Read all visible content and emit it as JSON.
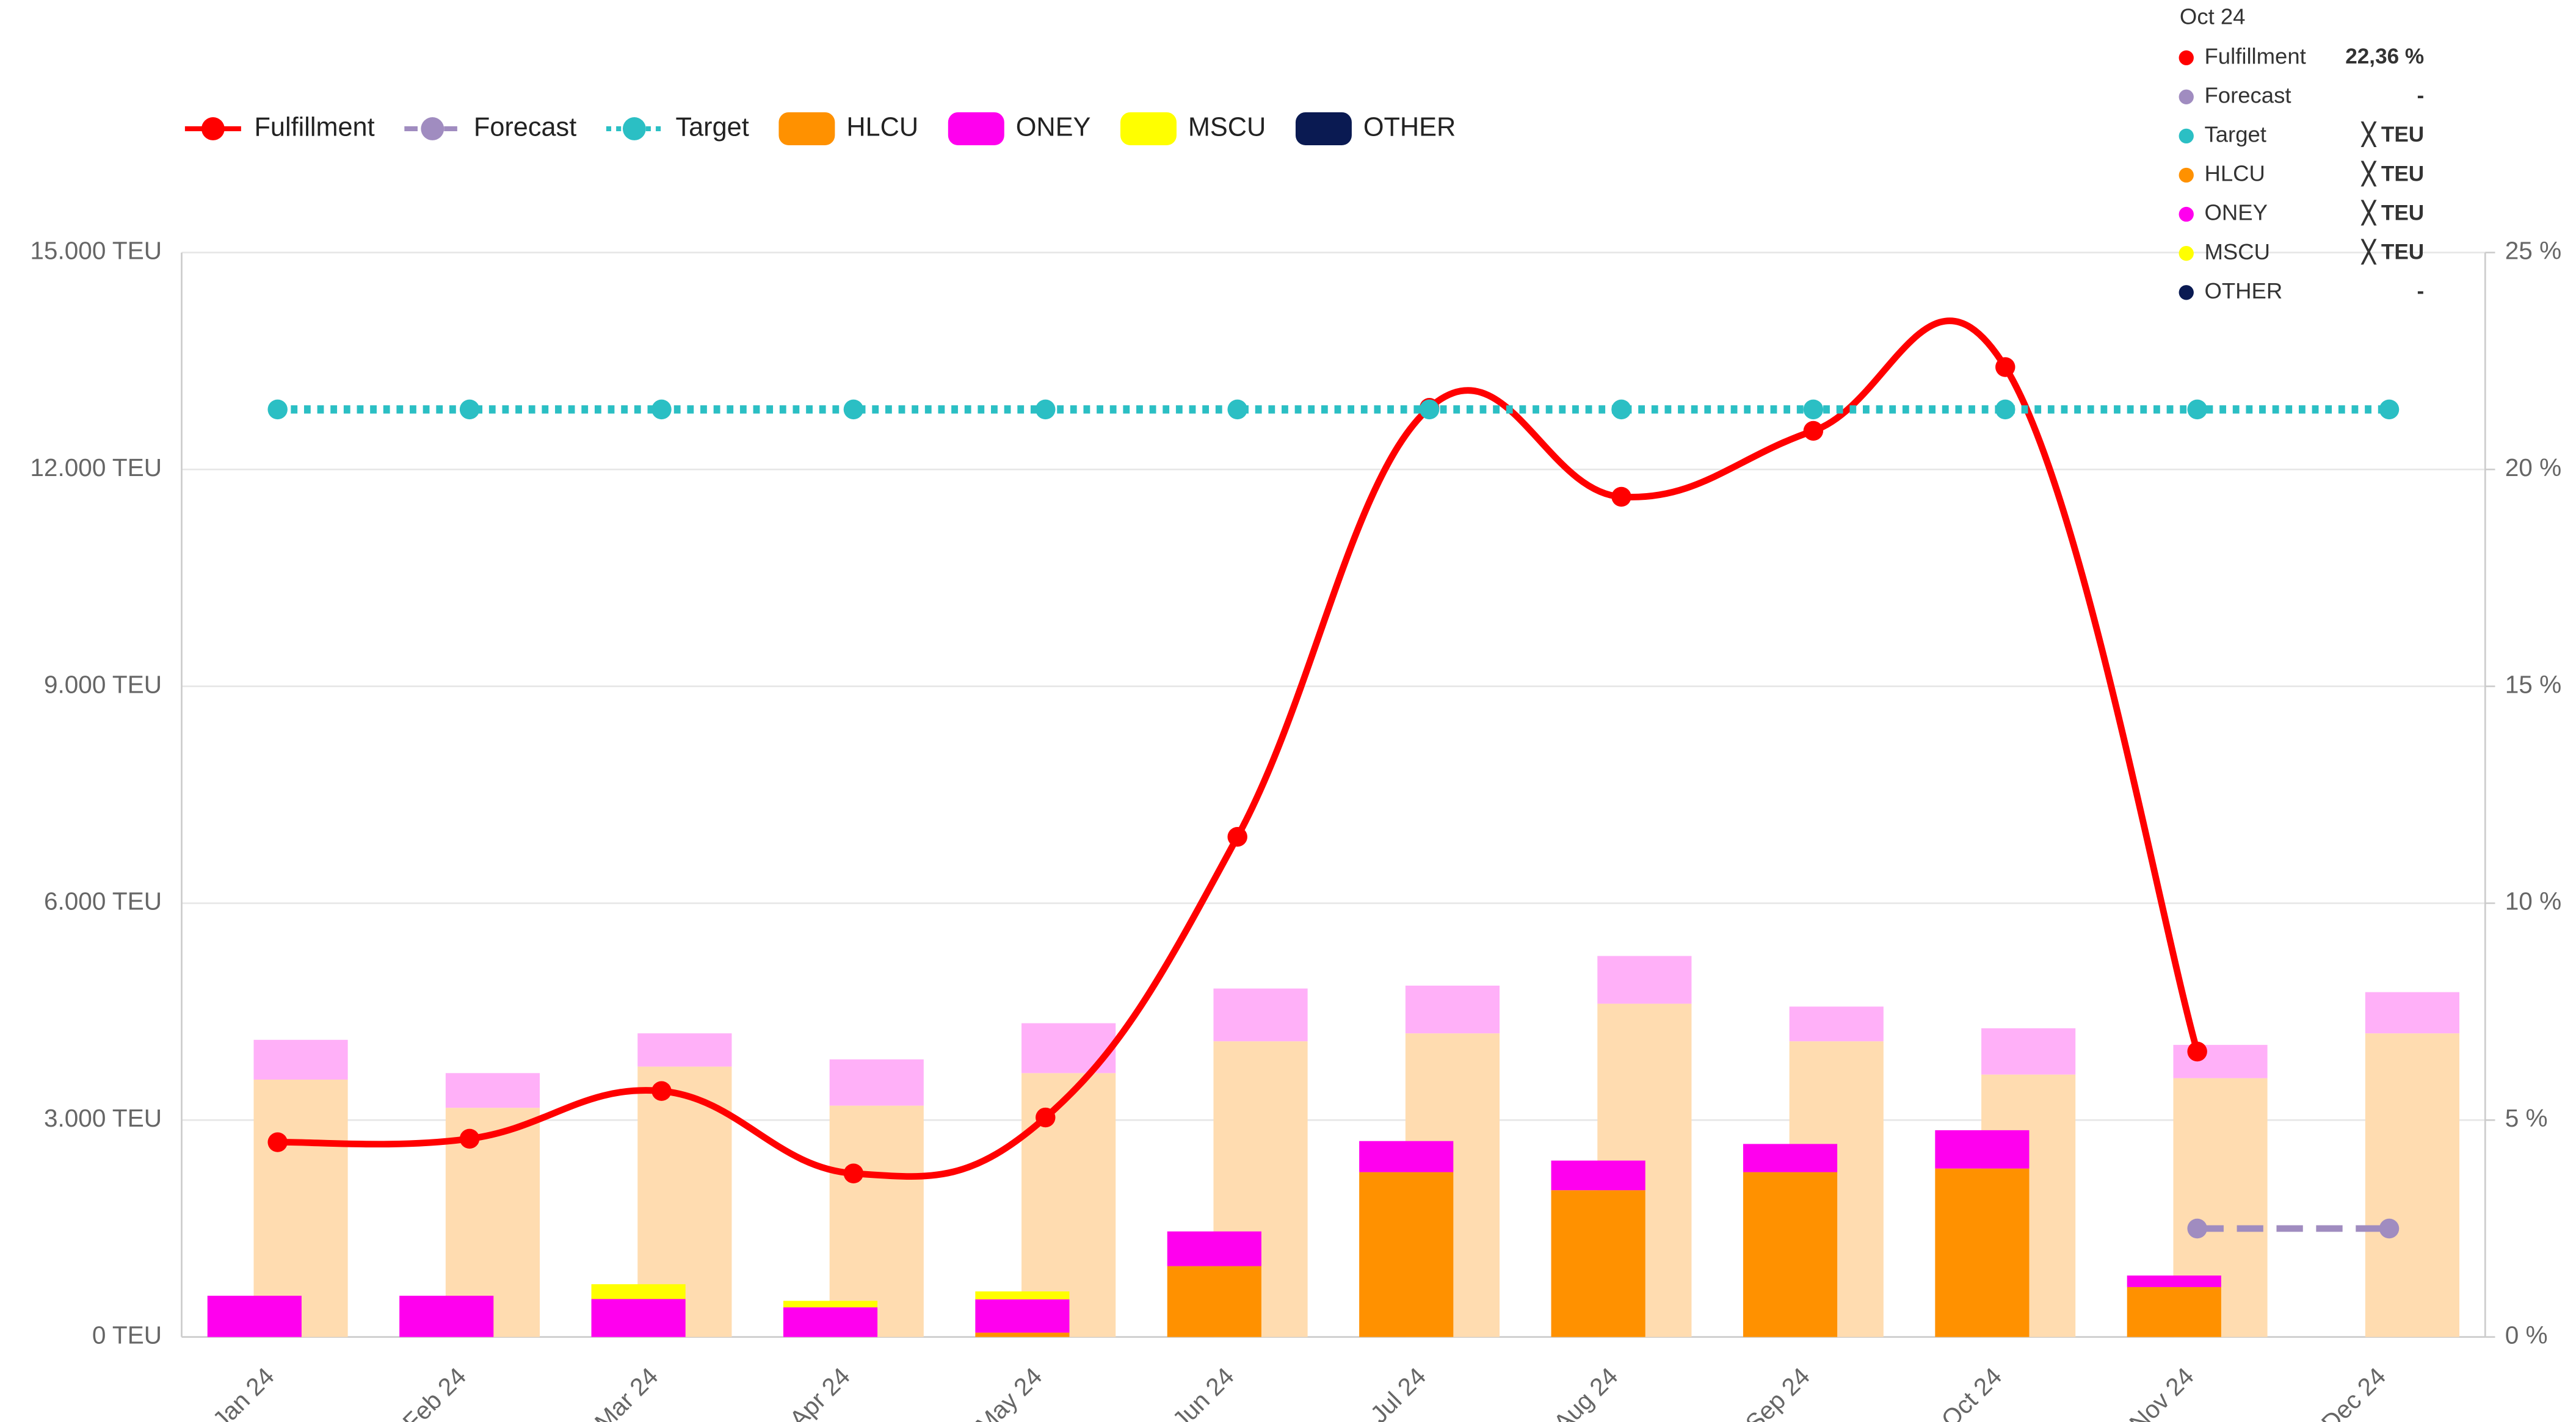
{
  "chart_data": {
    "type": "combo",
    "categories": [
      "Jan 24",
      "Feb 24",
      "Mar 24",
      "Apr 24",
      "May 24",
      "Jun 24",
      "Jul 24",
      "Aug 24",
      "Sep 24",
      "Oct 24",
      "Nov 24",
      "Dec 24"
    ],
    "series": [
      {
        "name": "Fulfillment",
        "kind": "line",
        "axis": "y2",
        "color": "#ff0000",
        "smooth": true,
        "values": [
          4.49,
          4.57,
          5.67,
          3.77,
          5.06,
          11.53,
          21.42,
          19.37,
          20.89,
          22.36,
          6.58,
          null
        ]
      },
      {
        "name": "Forecast",
        "kind": "line",
        "axis": "y2",
        "color": "#a08cc0",
        "dash": "dashed",
        "values": [
          null,
          null,
          null,
          null,
          null,
          null,
          null,
          null,
          null,
          null,
          2.5,
          2.5
        ]
      },
      {
        "name": "Target",
        "kind": "line",
        "axis": "y",
        "color": "#2bbfc4",
        "dash": "dotted",
        "values": [
          12830,
          12830,
          12830,
          12830,
          12830,
          12830,
          12830,
          12830,
          12830,
          12830,
          12830,
          12830
        ]
      },
      {
        "name": "HLCU",
        "kind": "bar",
        "axis": "y",
        "color": "#ff9100",
        "values": [
          0,
          0,
          0,
          0,
          60,
          980,
          2280,
          2030,
          2280,
          2330,
          690,
          0
        ]
      },
      {
        "name": "ONEY",
        "kind": "bar",
        "axis": "y",
        "color": "#ff00ee",
        "values": [
          570,
          570,
          525,
          410,
          460,
          480,
          430,
          410,
          390,
          530,
          160,
          0
        ]
      },
      {
        "name": "MSCU",
        "kind": "bar",
        "axis": "y",
        "color": "#ffff00",
        "values": [
          0,
          0,
          205,
          90,
          110,
          0,
          0,
          0,
          0,
          0,
          0,
          0
        ]
      },
      {
        "name": "OTHER",
        "kind": "bar",
        "axis": "y",
        "color": "#0a1a52",
        "values": [
          0,
          0,
          0,
          0,
          0,
          0,
          0,
          0,
          0,
          0,
          0,
          0
        ]
      }
    ],
    "reference_bars": [
      {
        "color": "#ffdcb0",
        "values": [
          3560,
          3170,
          3740,
          3200,
          3650,
          4090,
          4200,
          4610,
          4090,
          3630,
          3580,
          4200
        ]
      },
      {
        "color": "#ffb0f8",
        "values": [
          550,
          480,
          460,
          640,
          690,
          730,
          660,
          660,
          480,
          640,
          460,
          570
        ]
      }
    ],
    "ylim": [
      0,
      15000
    ],
    "yticks": [
      {
        "value": 0,
        "label": "0 TEU"
      },
      {
        "value": 3000,
        "label": "3.000 TEU"
      },
      {
        "value": 6000,
        "label": "6.000 TEU"
      },
      {
        "value": 9000,
        "label": "9.000 TEU"
      },
      {
        "value": 12000,
        "label": "12.000 TEU"
      },
      {
        "value": 15000,
        "label": "15.000 TEU"
      }
    ],
    "y2lim": [
      0,
      25
    ],
    "y2ticks": [
      {
        "value": 0,
        "label": "0 %"
      },
      {
        "value": 5,
        "label": "5 %"
      },
      {
        "value": 10,
        "label": "10 %"
      },
      {
        "value": 15,
        "label": "15 %"
      },
      {
        "value": 20,
        "label": "20 %"
      },
      {
        "value": 25,
        "label": "25 %"
      }
    ],
    "grid": true,
    "legend": "top-left",
    "tooltip": {
      "title": "Oct 24",
      "rows": [
        {
          "name": "Fulfillment",
          "value": "22,36 %"
        },
        {
          "name": "Forecast",
          "value": "-"
        },
        {
          "name": "Target",
          "value": "╳ TEU"
        },
        {
          "name": "HLCU",
          "value": "╳ TEU"
        },
        {
          "name": "ONEY",
          "value": "╳ TEU"
        },
        {
          "name": "MSCU",
          "value": "╳ TEU"
        },
        {
          "name": "OTHER",
          "value": "-"
        }
      ]
    }
  }
}
